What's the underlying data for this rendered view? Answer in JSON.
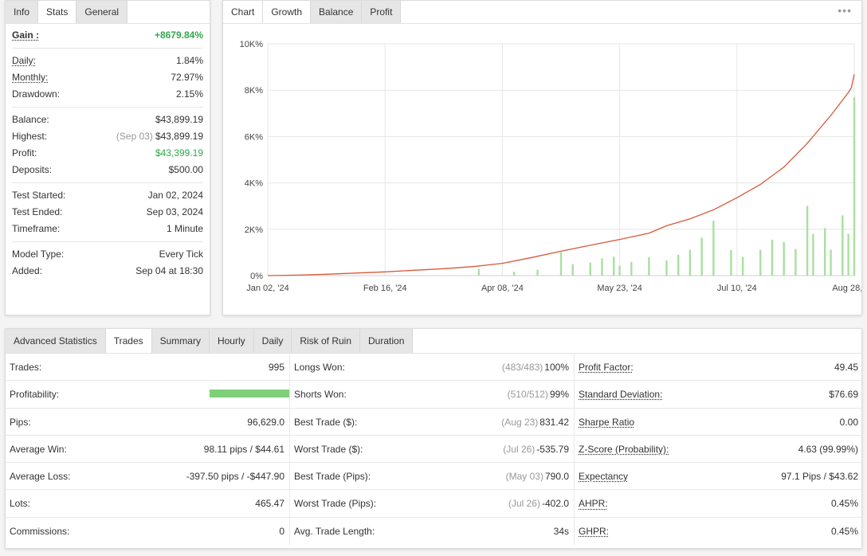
{
  "info_panel": {
    "tabs": [
      "Info",
      "Stats",
      "General"
    ],
    "gain": {
      "label": "Gain :",
      "value": "+8679.84%"
    },
    "group1": [
      {
        "label": "Daily:",
        "value": "1.84%",
        "underline": true
      },
      {
        "label": "Monthly:",
        "value": "72.97%",
        "underline": true
      },
      {
        "label": "Drawdown:",
        "value": "2.15%",
        "underline": false
      }
    ],
    "group2": [
      {
        "label": "Balance:",
        "value": "$43,899.19"
      },
      {
        "label": "Highest:",
        "note": "(Sep 03)",
        "value": "$43,899.19"
      },
      {
        "label": "Profit:",
        "value": "$43,399.19",
        "green": true
      },
      {
        "label": "Deposits:",
        "value": "$500.00"
      }
    ],
    "group3": [
      {
        "label": "Test Started:",
        "value": "Jan 02, 2024"
      },
      {
        "label": "Test Ended:",
        "value": "Sep 03, 2024"
      },
      {
        "label": "Timeframe:",
        "value": "1 Minute"
      }
    ],
    "group4": [
      {
        "label": "Model Type:",
        "value": "Every Tick"
      },
      {
        "label": "Added:",
        "value": "Sep 04 at 18:30"
      }
    ]
  },
  "chart_panel": {
    "tabs": [
      "Chart",
      "Growth",
      "Balance",
      "Profit"
    ],
    "more_label": "•••"
  },
  "chart_data": {
    "type": "line",
    "y_ticks": [
      "0%",
      "2K%",
      "4K%",
      "6K%",
      "8K%",
      "10K%"
    ],
    "x_ticks": [
      "Jan 02, '24",
      "Feb 16, '24",
      "Apr 08, '24",
      "May 23, '24",
      "Jul 10, '24",
      "Aug 28, '24"
    ],
    "ylim": [
      0,
      10000
    ],
    "grid": true,
    "colors": {
      "line": "#d9583b",
      "bars": "#a8e0a0",
      "grid": "#e6e6e6"
    },
    "series": [
      {
        "type": "line",
        "points": [
          {
            "x": 0.0,
            "y": 0
          },
          {
            "x": 0.05,
            "y": 20
          },
          {
            "x": 0.1,
            "y": 60
          },
          {
            "x": 0.15,
            "y": 110
          },
          {
            "x": 0.2,
            "y": 160
          },
          {
            "x": 0.25,
            "y": 230
          },
          {
            "x": 0.3,
            "y": 300
          },
          {
            "x": 0.35,
            "y": 390
          },
          {
            "x": 0.4,
            "y": 530
          },
          {
            "x": 0.45,
            "y": 780
          },
          {
            "x": 0.5,
            "y": 1050
          },
          {
            "x": 0.55,
            "y": 1310
          },
          {
            "x": 0.6,
            "y": 1560
          },
          {
            "x": 0.65,
            "y": 1830
          },
          {
            "x": 0.68,
            "y": 2150
          },
          {
            "x": 0.72,
            "y": 2450
          },
          {
            "x": 0.76,
            "y": 2840
          },
          {
            "x": 0.8,
            "y": 3360
          },
          {
            "x": 0.84,
            "y": 3930
          },
          {
            "x": 0.88,
            "y": 4680
          },
          {
            "x": 0.92,
            "y": 5710
          },
          {
            "x": 0.96,
            "y": 6910
          },
          {
            "x": 0.99,
            "y": 7900
          },
          {
            "x": 0.995,
            "y": 8100
          },
          {
            "x": 1.0,
            "y": 8680
          }
        ]
      },
      {
        "type": "bar",
        "values": [
          {
            "x": 0.36,
            "y": 280
          },
          {
            "x": 0.42,
            "y": 170
          },
          {
            "x": 0.46,
            "y": 260
          },
          {
            "x": 0.5,
            "y": 1010
          },
          {
            "x": 0.52,
            "y": 490
          },
          {
            "x": 0.55,
            "y": 560
          },
          {
            "x": 0.57,
            "y": 740
          },
          {
            "x": 0.59,
            "y": 820
          },
          {
            "x": 0.6,
            "y": 430
          },
          {
            "x": 0.62,
            "y": 590
          },
          {
            "x": 0.65,
            "y": 790
          },
          {
            "x": 0.68,
            "y": 660
          },
          {
            "x": 0.7,
            "y": 900
          },
          {
            "x": 0.72,
            "y": 1120
          },
          {
            "x": 0.74,
            "y": 1640
          },
          {
            "x": 0.76,
            "y": 2370
          },
          {
            "x": 0.79,
            "y": 1100
          },
          {
            "x": 0.81,
            "y": 800
          },
          {
            "x": 0.84,
            "y": 1110
          },
          {
            "x": 0.86,
            "y": 1550
          },
          {
            "x": 0.88,
            "y": 1450
          },
          {
            "x": 0.9,
            "y": 1150
          },
          {
            "x": 0.92,
            "y": 3010
          },
          {
            "x": 0.93,
            "y": 1800
          },
          {
            "x": 0.95,
            "y": 2050
          },
          {
            "x": 0.96,
            "y": 1120
          },
          {
            "x": 0.98,
            "y": 2600
          },
          {
            "x": 0.99,
            "y": 1800
          },
          {
            "x": 1.0,
            "y": 7690
          }
        ]
      }
    ]
  },
  "advanced_panel": {
    "title": "Advanced Statistics",
    "tabs": [
      "Trades",
      "Summary",
      "Hourly",
      "Daily",
      "Risk of Ruin",
      "Duration"
    ],
    "rows": [
      [
        {
          "label": "Trades:",
          "value": "995"
        },
        {
          "label": "Longs Won:",
          "note": "(483/483)",
          "value": "100%"
        },
        {
          "label": "Profit Factor:",
          "value": "49.45",
          "underline": true
        }
      ],
      [
        {
          "label": "Profitability:",
          "bar": 1.0
        },
        {
          "label": "Shorts Won:",
          "note": "(510/512)",
          "value": "99%"
        },
        {
          "label": "Standard Deviation:",
          "value": "$76.69",
          "underline": true
        }
      ],
      [
        {
          "label": "Pips:",
          "value": "96,629.0"
        },
        {
          "label": "Best Trade ($):",
          "note": "(Aug 23)",
          "value": "831.42"
        },
        {
          "label": "Sharpe Ratio",
          "value": "0.00",
          "underline": true
        }
      ],
      [
        {
          "label": "Average Win:",
          "value": "98.11 pips / $44.61"
        },
        {
          "label": "Worst Trade ($):",
          "note": "(Jul 26)",
          "value": "-535.79"
        },
        {
          "label": "Z-Score (Probability):",
          "value": "4.63 (99.99%)",
          "underline": true
        }
      ],
      [
        {
          "label": "Average Loss:",
          "value": "-397.50 pips / -$447.90"
        },
        {
          "label": "Best Trade (Pips):",
          "note": "(May 03)",
          "value": "790.0"
        },
        {
          "label": "Expectancy",
          "value": "97.1 Pips / $43.62",
          "underline": true
        }
      ],
      [
        {
          "label": "Lots:",
          "value": "465.47"
        },
        {
          "label": "Worst Trade (Pips):",
          "note": "(Jul 26)",
          "value": "-402.0"
        },
        {
          "label": "AHPR:",
          "value": "0.45%",
          "underline": true
        }
      ],
      [
        {
          "label": "Commissions:",
          "value": "0"
        },
        {
          "label": "Avg. Trade Length:",
          "value": "34s"
        },
        {
          "label": "GHPR:",
          "value": "0.45%",
          "underline": true
        }
      ]
    ]
  }
}
